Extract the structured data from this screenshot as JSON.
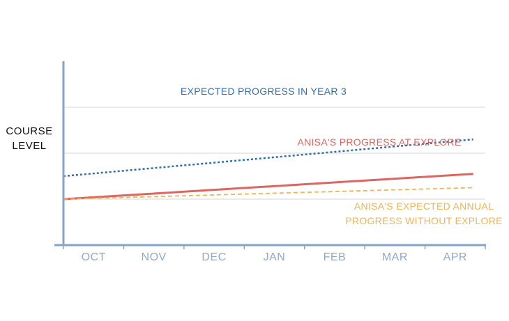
{
  "chart_data": {
    "type": "line",
    "title": "",
    "xlabel": "",
    "ylabel_lines": [
      "COURSE",
      "LEVEL"
    ],
    "categories": [
      "OCT",
      "NOV",
      "DEC",
      "JAN",
      "FEB",
      "MAR",
      "APR"
    ],
    "ylim": [
      0,
      4
    ],
    "grid_y": [
      1,
      2,
      3
    ],
    "series": [
      {
        "name": "EXPECTED PROGRESS IN YEAR 3",
        "label_lines": [
          "EXPECTED PROGRESS IN YEAR 3"
        ],
        "color": "#2f6fb0",
        "style": "dotted",
        "x": [
          0,
          6.8
        ],
        "y": [
          1.5,
          2.3
        ]
      },
      {
        "name": "ANISA'S PROGRESS AT EXPLORE",
        "label_lines": [
          "ANISA'S PROGRESS AT EXPLORE"
        ],
        "color": "#de6560",
        "style": "solid",
        "x": [
          0,
          6.8
        ],
        "y": [
          1.0,
          1.55
        ]
      },
      {
        "name": "ANISA'S EXPECTED ANNUAL PROGRESS WITHOUT EXPLORE",
        "label_lines": [
          "ANISA'S EXPECTED ANNUAL",
          "PROGRESS WITHOUT EXPLORE"
        ],
        "color": "#f4b34f",
        "style": "dashed",
        "x": [
          0,
          6.8
        ],
        "y": [
          1.0,
          1.25
        ]
      }
    ]
  }
}
